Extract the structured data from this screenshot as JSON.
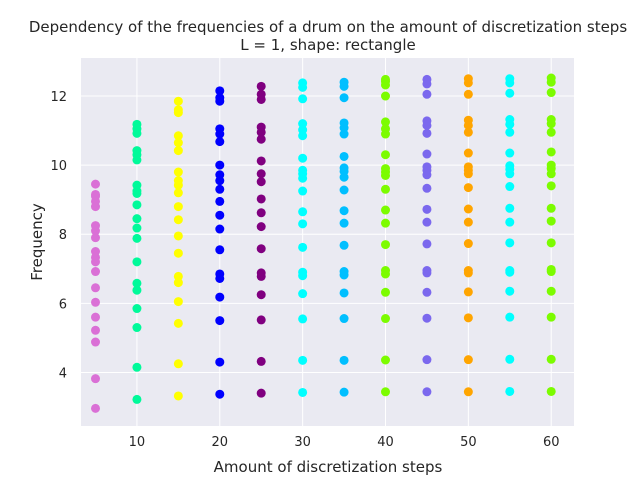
{
  "chart_data": {
    "type": "scatter",
    "title": "Dependency of the frequencies of a drum on the amount of discretization steps",
    "subtitle": "L = 1, shape: rectangle",
    "xlabel": "Amount of discretization steps",
    "ylabel": "Frequency",
    "xlim": [
      3.25,
      62.75
    ],
    "ylim": [
      2.45,
      13.1
    ],
    "xticks": [
      10,
      20,
      30,
      40,
      50,
      60
    ],
    "yticks": [
      4,
      6,
      8,
      10,
      12
    ],
    "grid": true,
    "legend": "none",
    "style": {
      "background": "#eaeaf2",
      "grid_color": "#ffffff"
    },
    "series": [
      {
        "x": 5,
        "color": "#da70d6",
        "values": [
          2.96,
          3.82,
          4.88,
          5.22,
          5.6,
          6.03,
          6.45,
          6.92,
          7.2,
          7.33,
          7.5,
          7.9,
          8.1,
          8.25,
          8.8,
          8.95,
          9.1,
          9.15,
          9.45
        ]
      },
      {
        "x": 10,
        "color": "#00fa9a",
        "values": [
          3.22,
          4.15,
          5.3,
          5.85,
          6.38,
          6.58,
          7.2,
          7.88,
          8.18,
          8.45,
          8.85,
          9.18,
          9.25,
          9.42,
          10.15,
          10.3,
          10.42,
          10.92,
          11.05,
          11.18
        ]
      },
      {
        "x": 15,
        "color": "#ffff00",
        "values": [
          3.32,
          4.25,
          5.42,
          6.05,
          6.6,
          6.78,
          7.45,
          7.95,
          8.42,
          8.8,
          9.2,
          9.42,
          9.55,
          9.8,
          10.42,
          10.65,
          10.85,
          11.52,
          11.6,
          11.85
        ]
      },
      {
        "x": 20,
        "color": "#0000ff",
        "values": [
          3.37,
          4.3,
          5.5,
          6.18,
          6.72,
          6.85,
          7.55,
          8.15,
          8.55,
          8.95,
          9.3,
          9.55,
          9.72,
          10.0,
          10.68,
          10.9,
          11.05,
          11.85,
          11.95,
          12.15
        ]
      },
      {
        "x": 25,
        "color": "#800080",
        "values": [
          3.4,
          4.32,
          5.52,
          6.25,
          6.78,
          6.88,
          7.58,
          8.22,
          8.62,
          9.02,
          9.52,
          9.75,
          10.12,
          10.75,
          10.95,
          11.1,
          11.9,
          12.05,
          12.28
        ]
      },
      {
        "x": 30,
        "color": "#00ffff",
        "values": [
          3.42,
          4.35,
          5.55,
          6.28,
          6.8,
          6.9,
          7.62,
          8.3,
          8.65,
          9.25,
          9.62,
          9.75,
          9.85,
          10.2,
          10.85,
          11.02,
          11.2,
          11.92,
          12.25,
          12.38
        ]
      },
      {
        "x": 35,
        "color": "#00bfff",
        "values": [
          3.43,
          4.35,
          5.56,
          6.3,
          6.82,
          6.92,
          7.68,
          8.32,
          8.68,
          9.28,
          9.65,
          9.82,
          9.92,
          10.25,
          10.9,
          11.08,
          11.22,
          11.95,
          12.28,
          12.4
        ]
      },
      {
        "x": 40,
        "color": "#7cfc00",
        "values": [
          3.44,
          4.36,
          5.56,
          6.32,
          6.85,
          6.95,
          7.7,
          8.32,
          8.7,
          9.3,
          9.7,
          9.8,
          9.9,
          10.3,
          10.9,
          11.05,
          11.25,
          12.0,
          12.32,
          12.42,
          12.48
        ]
      },
      {
        "x": 45,
        "color": "#7b68ee",
        "values": [
          3.44,
          4.37,
          5.57,
          6.32,
          6.88,
          6.95,
          7.72,
          8.35,
          8.72,
          9.33,
          9.72,
          9.85,
          9.95,
          10.32,
          10.92,
          11.15,
          11.28,
          12.05,
          12.35,
          12.48
        ]
      },
      {
        "x": 50,
        "color": "#ffa500",
        "values": [
          3.44,
          4.37,
          5.58,
          6.33,
          6.88,
          6.95,
          7.73,
          8.35,
          8.73,
          9.35,
          9.75,
          9.85,
          9.95,
          10.35,
          10.95,
          11.15,
          11.3,
          12.05,
          12.38,
          12.5
        ]
      },
      {
        "x": 55,
        "color": "#00ffff",
        "values": [
          3.45,
          4.38,
          5.6,
          6.35,
          6.9,
          6.95,
          7.75,
          8.35,
          8.75,
          9.38,
          9.75,
          9.88,
          9.98,
          10.35,
          10.95,
          11.18,
          11.32,
          12.08,
          12.38,
          12.5
        ]
      },
      {
        "x": 60,
        "color": "#7cfc00",
        "values": [
          3.45,
          4.38,
          5.6,
          6.35,
          6.92,
          6.98,
          7.75,
          8.38,
          8.75,
          9.4,
          9.75,
          9.9,
          10.0,
          10.38,
          10.95,
          11.2,
          11.32,
          12.1,
          12.4,
          12.52
        ]
      }
    ]
  }
}
